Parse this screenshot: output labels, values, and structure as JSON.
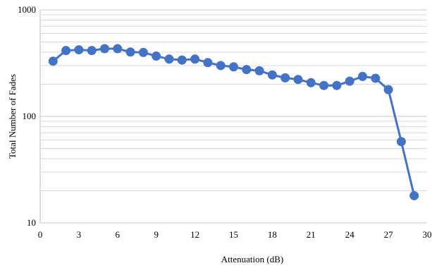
{
  "chart_data": {
    "type": "line",
    "title": "",
    "xlabel": "Attenuation (dB)",
    "ylabel": "Total Number of Fades",
    "x": [
      1,
      2,
      3,
      4,
      5,
      6,
      7,
      8,
      9,
      10,
      11,
      12,
      13,
      14,
      15,
      16,
      17,
      18,
      19,
      20,
      21,
      22,
      23,
      24,
      25,
      26,
      27,
      28,
      29
    ],
    "series": [
      {
        "values": [
          330,
          415,
          422,
          415,
          432,
          432,
          402,
          398,
          368,
          345,
          338,
          345,
          320,
          300,
          292,
          275,
          268,
          245,
          230,
          222,
          207,
          195,
          195,
          214,
          237,
          228,
          178,
          58,
          18
        ]
      }
    ],
    "xlim": [
      0,
      30
    ],
    "ylim": [
      10,
      1000
    ],
    "y_scale": "log",
    "x_ticks": [
      "0",
      "3",
      "6",
      "9",
      "12",
      "15",
      "18",
      "21",
      "24",
      "27",
      "30"
    ],
    "y_ticks": [
      "10",
      "100",
      "1000"
    ],
    "grid": true,
    "legend": "none",
    "line_color": "#4472C4",
    "marker_color": "#4472C4"
  }
}
